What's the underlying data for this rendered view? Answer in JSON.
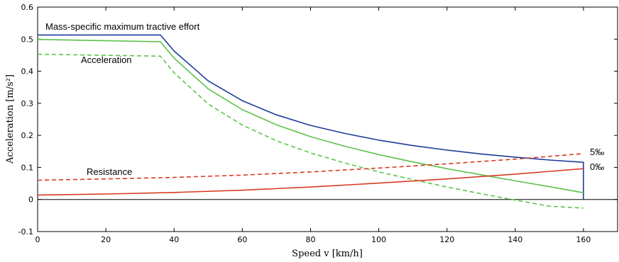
{
  "chart_data": {
    "type": "line",
    "xlabel": "Speed v [km/h]",
    "ylabel": "Acceleration [m/s²]",
    "xlim": [
      0,
      170
    ],
    "ylim": [
      -0.1,
      0.6
    ],
    "xticks": [
      0,
      20,
      40,
      60,
      80,
      100,
      120,
      140,
      160
    ],
    "yticks": [
      -0.1,
      0,
      0.1,
      0.2,
      0.3,
      0.4,
      0.5,
      0.6
    ],
    "xtick_labels": [
      "0",
      "20",
      "40",
      "60",
      "80",
      "100",
      "120",
      "140",
      "160"
    ],
    "ytick_labels": [
      "-0.1",
      "0",
      "0.1",
      "0.2",
      "0.3",
      "0.4",
      "0.5",
      "0.6"
    ],
    "grid": false,
    "legend": null,
    "annotations": {
      "tractive": "Mass-specific maximum tractive effort",
      "acceleration": "Acceleration",
      "resistance": "Resistance",
      "grade5": "5‰",
      "grade0": "0‰"
    },
    "series": [
      {
        "color": "#1f3b9a",
        "dash": "solid",
        "points": [
          [
            0,
            0.513
          ],
          [
            36,
            0.513
          ],
          [
            40,
            0.463
          ],
          [
            50,
            0.37
          ],
          [
            60,
            0.308
          ],
          [
            70,
            0.264
          ],
          [
            80,
            0.231
          ],
          [
            90,
            0.206
          ],
          [
            100,
            0.185
          ],
          [
            110,
            0.168
          ],
          [
            120,
            0.154
          ],
          [
            130,
            0.142
          ],
          [
            140,
            0.132
          ],
          [
            150,
            0.123
          ],
          [
            160,
            0.116
          ],
          [
            160,
            0.0
          ]
        ]
      },
      {
        "color": "#5cc24a",
        "dash": "solid",
        "points": [
          [
            0,
            0.499
          ],
          [
            36,
            0.492
          ],
          [
            40,
            0.441
          ],
          [
            50,
            0.345
          ],
          [
            60,
            0.28
          ],
          [
            70,
            0.233
          ],
          [
            80,
            0.196
          ],
          [
            90,
            0.166
          ],
          [
            100,
            0.14
          ],
          [
            110,
            0.117
          ],
          [
            120,
            0.096
          ],
          [
            130,
            0.077
          ],
          [
            140,
            0.058
          ],
          [
            150,
            0.04
          ],
          [
            160,
            0.021
          ]
        ]
      },
      {
        "color": "#5cc24a",
        "dash": "dashed",
        "points": [
          [
            0,
            0.453
          ],
          [
            36,
            0.447
          ],
          [
            40,
            0.395
          ],
          [
            50,
            0.298
          ],
          [
            60,
            0.232
          ],
          [
            70,
            0.183
          ],
          [
            80,
            0.145
          ],
          [
            90,
            0.114
          ],
          [
            100,
            0.086
          ],
          [
            110,
            0.062
          ],
          [
            120,
            0.039
          ],
          [
            130,
            0.018
          ],
          [
            140,
            -0.002
          ],
          [
            150,
            -0.021
          ],
          [
            160,
            -0.027
          ]
        ]
      },
      {
        "color": "#d83a22",
        "dash": "solid",
        "points": [
          [
            0,
            0.014
          ],
          [
            20,
            0.017
          ],
          [
            40,
            0.022
          ],
          [
            60,
            0.029
          ],
          [
            80,
            0.039
          ],
          [
            100,
            0.051
          ],
          [
            120,
            0.064
          ],
          [
            140,
            0.079
          ],
          [
            160,
            0.096
          ]
        ]
      },
      {
        "color": "#d83a22",
        "dash": "dashed",
        "points": [
          [
            0,
            0.06
          ],
          [
            20,
            0.064
          ],
          [
            40,
            0.069
          ],
          [
            60,
            0.076
          ],
          [
            80,
            0.086
          ],
          [
            100,
            0.098
          ],
          [
            120,
            0.111
          ],
          [
            140,
            0.126
          ],
          [
            160,
            0.143
          ]
        ]
      }
    ]
  }
}
